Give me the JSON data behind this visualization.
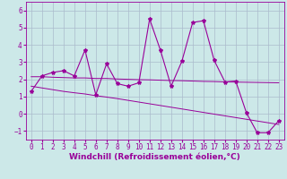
{
  "xlabel": "Windchill (Refroidissement éolien,°C)",
  "x_values": [
    0,
    1,
    2,
    3,
    4,
    5,
    6,
    7,
    8,
    9,
    10,
    11,
    12,
    13,
    14,
    15,
    16,
    17,
    18,
    19,
    20,
    21,
    22,
    23
  ],
  "y_main": [
    1.3,
    2.2,
    2.4,
    2.5,
    2.2,
    3.7,
    1.1,
    2.9,
    1.75,
    1.6,
    1.8,
    5.5,
    3.7,
    1.6,
    3.05,
    5.3,
    5.4,
    3.1,
    1.85,
    1.9,
    0.05,
    -1.1,
    -1.1,
    -0.4
  ],
  "y_trend1": [
    2.15,
    2.15,
    2.12,
    2.1,
    2.08,
    2.08,
    2.05,
    2.05,
    2.02,
    2.0,
    1.98,
    1.97,
    1.95,
    1.93,
    1.92,
    1.9,
    1.88,
    1.87,
    1.85,
    1.84,
    1.83,
    1.82,
    1.81,
    1.8
  ],
  "y_trend2": [
    1.6,
    1.5,
    1.4,
    1.3,
    1.22,
    1.15,
    1.05,
    0.97,
    0.88,
    0.78,
    0.68,
    0.58,
    0.48,
    0.38,
    0.28,
    0.18,
    0.08,
    -0.02,
    -0.12,
    -0.22,
    -0.32,
    -0.42,
    -0.52,
    -0.62
  ],
  "line_color": "#990099",
  "bg_color": "#cce8e8",
  "grid_color": "#aaccaa",
  "ylim": [
    -1.5,
    6.5
  ],
  "xlim": [
    -0.5,
    23.5
  ],
  "yticks": [
    -1,
    0,
    1,
    2,
    3,
    4,
    5,
    6
  ],
  "xticks": [
    0,
    1,
    2,
    3,
    4,
    5,
    6,
    7,
    8,
    9,
    10,
    11,
    12,
    13,
    14,
    15,
    16,
    17,
    18,
    19,
    20,
    21,
    22,
    23
  ],
  "tick_fontsize": 5.5,
  "label_fontsize": 6.5
}
